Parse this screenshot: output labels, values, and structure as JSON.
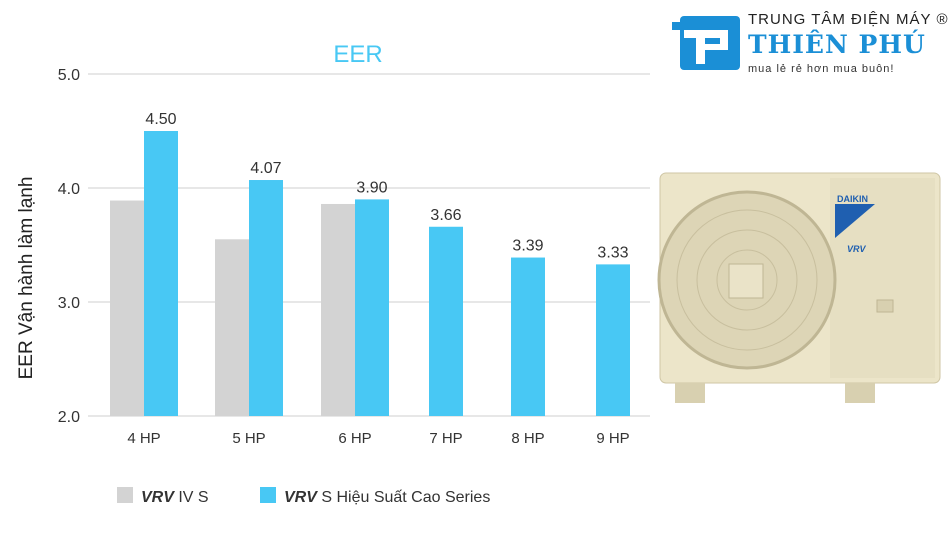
{
  "chart_data": {
    "type": "bar",
    "title": "EER",
    "ylabel": "EER Vận hành làm lạnh",
    "xlabel": "",
    "ylim": [
      2.0,
      5.0
    ],
    "yticks": [
      "2.0",
      "3.0",
      "4.0",
      "5.0"
    ],
    "grid": true,
    "legend_placement": "bottom-left",
    "categories": [
      "4 HP",
      "5 HP",
      "6 HP",
      "7 HP",
      "8 HP",
      "9 HP"
    ],
    "series": [
      {
        "name": "VRV IV S",
        "name_bold": "VRV",
        "name_rest": " IV S",
        "color": "#d3d3d3",
        "values": [
          3.89,
          3.55,
          3.86,
          null,
          null,
          null
        ],
        "labels": [
          null,
          null,
          null,
          null,
          null,
          null
        ]
      },
      {
        "name": "VRV S Hiệu Suất Cao Series",
        "name_bold": "VRV",
        "name_rest": " S Hiệu Suất Cao Series",
        "color": "#48c8f4",
        "values": [
          4.5,
          4.07,
          3.9,
          3.66,
          3.39,
          3.33
        ],
        "labels": [
          "4.50",
          "4.07",
          "3.90",
          "3.66",
          "3.39",
          "3.33"
        ]
      }
    ]
  },
  "colors": {
    "title": "#48c8f4",
    "brand": "#1b8fd6"
  },
  "logo": {
    "line1": "TRUNG TÂM ĐIỆN MÁY ®",
    "line2": "THIÊN PHÚ",
    "line3": "mua lẻ rẻ hơn mua buôn!"
  },
  "product": {
    "brand": "DAIKIN",
    "model": "VRV"
  }
}
